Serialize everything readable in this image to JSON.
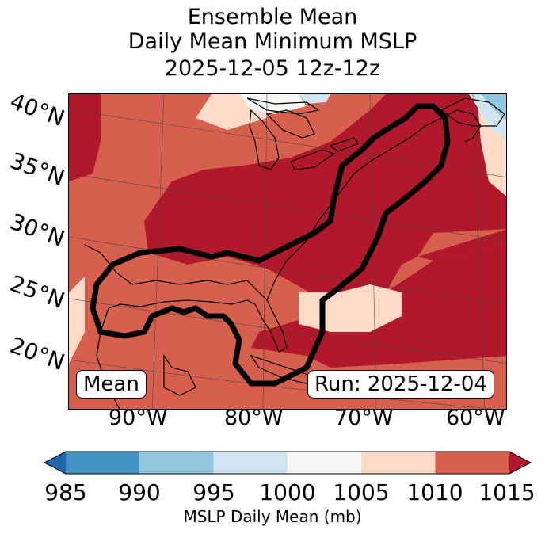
{
  "title": {
    "line1": "Ensemble Mean",
    "line2": "Daily Mean Minimum MSLP",
    "line3": "2025-12-05 12z-12z"
  },
  "map": {
    "lat_labels": [
      "40°N",
      "35°N",
      "30°N",
      "25°N",
      "20°N"
    ],
    "lon_labels": [
      "90°W",
      "80°W",
      "70°W",
      "60°W"
    ],
    "mean_label": "Mean",
    "run_label": "Run: 2025-12-04",
    "fill_colors": {
      "c1015": "#b2182b",
      "c1010": "#d6604d",
      "c1005": "#fddbc7",
      "c1000": "#f7f7f7",
      "c995": "#d1e5f0",
      "c990": "#92c5de",
      "c985": "#4393c3",
      "c980": "#2166ac"
    }
  },
  "colorbar": {
    "ticks": [
      "985",
      "990",
      "995",
      "1000",
      "1005",
      "1010",
      "1015"
    ],
    "label": "MSLP Daily Mean (mb)",
    "colors": [
      "#4393c3",
      "#92c5de",
      "#d1e5f0",
      "#f7f7f7",
      "#fddbc7",
      "#d6604d"
    ],
    "under_color": "#2166ac",
    "over_color": "#b2182b"
  }
}
